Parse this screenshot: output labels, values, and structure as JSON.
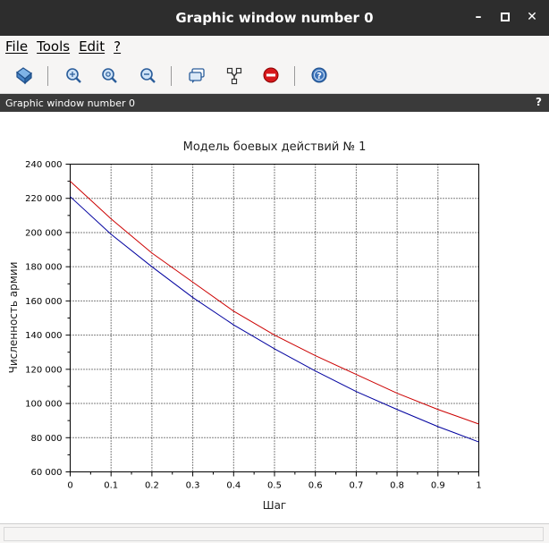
{
  "window": {
    "title": "Graphic window number 0",
    "subheader_title": "Graphic window number 0",
    "help_glyph": "?"
  },
  "title_controls": [
    {
      "name": "minimize",
      "glyph": "–"
    },
    {
      "name": "maximize",
      "glyph": "▫"
    },
    {
      "name": "close",
      "glyph": "✕"
    }
  ],
  "menu": {
    "items": [
      "File",
      "Tools",
      "Edit",
      "?"
    ]
  },
  "toolbar": {
    "buttons": [
      {
        "icon": "rotate-icon"
      },
      {
        "icon": "zoom-in-icon"
      },
      {
        "icon": "zoom-reset-icon"
      },
      {
        "icon": "zoom-area-icon"
      },
      {
        "icon": "datatip-icon"
      },
      {
        "icon": "edit-curves-icon"
      },
      {
        "icon": "stop-icon"
      },
      {
        "icon": "help-icon"
      }
    ]
  },
  "chart_data": {
    "type": "line",
    "title": "Модель боевых действий № 1",
    "xlabel": "Шаг",
    "ylabel": "Численность армии",
    "xlim": [
      0,
      1
    ],
    "ylim": [
      60000,
      240000
    ],
    "x_ticks": [
      0,
      0.1,
      0.2,
      0.3,
      0.4,
      0.5,
      0.6,
      0.7,
      0.8,
      0.9,
      1
    ],
    "x_tick_labels": [
      "0",
      "0.1",
      "0.2",
      "0.3",
      "0.4",
      "0.5",
      "0.6",
      "0.7",
      "0.8",
      "0.9",
      "1"
    ],
    "y_ticks": [
      60000,
      80000,
      100000,
      120000,
      140000,
      160000,
      180000,
      200000,
      220000,
      240000
    ],
    "y_tick_labels": [
      "60 000",
      "80 000",
      "100 000",
      "120 000",
      "140 000",
      "160 000",
      "180 000",
      "200 000",
      "220 000",
      "240 000"
    ],
    "grid": true,
    "x": [
      0,
      0.1,
      0.2,
      0.3,
      0.4,
      0.5,
      0.6,
      0.7,
      0.8,
      0.9,
      1
    ],
    "series": [
      {
        "color": "#cc0000",
        "values": [
          230000,
          208000,
          188000,
          171000,
          154000,
          140000,
          128000,
          117000,
          106000,
          96500,
          88000
        ]
      },
      {
        "color": "#00009f",
        "values": [
          221000,
          199000,
          180000,
          162000,
          146000,
          132000,
          119000,
          107000,
          96500,
          86500,
          77500
        ]
      }
    ]
  }
}
